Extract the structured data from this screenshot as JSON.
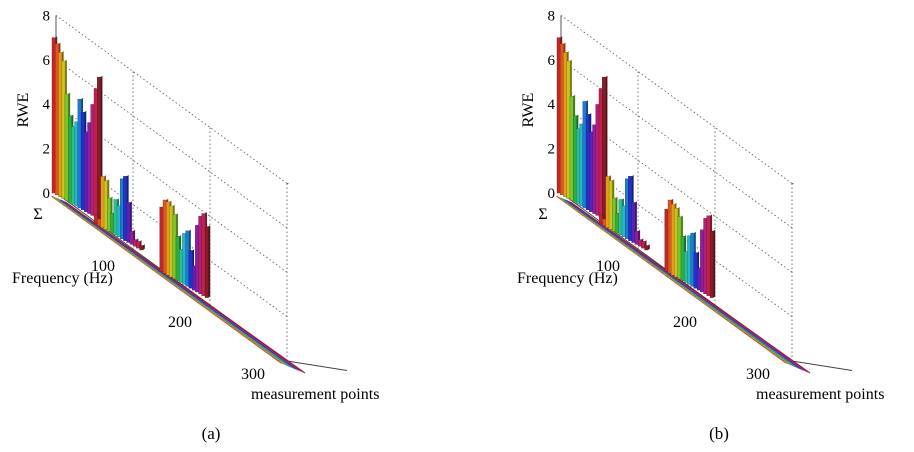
{
  "figures": [
    {
      "caption": "(a)"
    },
    {
      "caption": "(b)"
    }
  ],
  "chart_data": [
    {
      "type": "bar",
      "subplot": "(a)",
      "zlabel": "RWE",
      "zticks": [
        "0",
        "2",
        "4",
        "6",
        "8"
      ],
      "zlim": [
        0,
        8
      ],
      "xlabel": "Frequency (Hz)",
      "xticks": [
        "Σ",
        "100",
        "200",
        "300"
      ],
      "ylabel": "measurement points",
      "grid": true,
      "bar_groups": [
        {
          "frequency": "Σ",
          "values": [
            7.0,
            6.8,
            6.5,
            6.2,
            4.8,
            3.9,
            3.5,
            3.8,
            4.9,
            4.4,
            3.6,
            4.1,
            5.0,
            5.8,
            6.4
          ]
        },
        {
          "frequency": 55,
          "values": [
            0.4,
            0.3,
            2.3,
            2.2,
            1.5,
            0.9,
            1.6,
            1.4,
            2.7,
            2.9,
            1.8,
            0.6,
            0.3,
            0.3,
            0.2
          ]
        },
        {
          "frequency": 140,
          "values": [
            2.9,
            3.3,
            3.3,
            3.2,
            2.9,
            2.0,
            1.5,
            2.3,
            2.5,
            1.7,
            1.1,
            3.0,
            3.5,
            3.7,
            3.2
          ]
        }
      ]
    },
    {
      "type": "bar",
      "subplot": "(b)",
      "zlabel": "RWE",
      "zticks": [
        "0",
        "2",
        "4",
        "6",
        "8"
      ],
      "zlim": [
        0,
        8
      ],
      "xlabel": "Frequency (Hz)",
      "xticks": [
        "Σ",
        "100",
        "200",
        "300"
      ],
      "ylabel": "measurement points",
      "grid": true,
      "bar_groups": [
        {
          "frequency": "Σ",
          "values": [
            7.0,
            6.8,
            6.5,
            6.2,
            4.7,
            3.9,
            3.4,
            3.7,
            4.8,
            4.3,
            3.6,
            4.0,
            5.0,
            5.8,
            6.4
          ]
        },
        {
          "frequency": 55,
          "values": [
            0.4,
            0.3,
            2.3,
            2.2,
            1.5,
            0.9,
            1.6,
            1.4,
            2.7,
            2.9,
            1.8,
            0.6,
            0.3,
            0.3,
            0.2
          ]
        },
        {
          "frequency": 140,
          "values": [
            2.8,
            3.3,
            3.2,
            3.1,
            2.8,
            2.0,
            1.4,
            2.2,
            2.4,
            1.6,
            1.0,
            2.8,
            3.4,
            3.6,
            3.0
          ]
        }
      ]
    }
  ]
}
